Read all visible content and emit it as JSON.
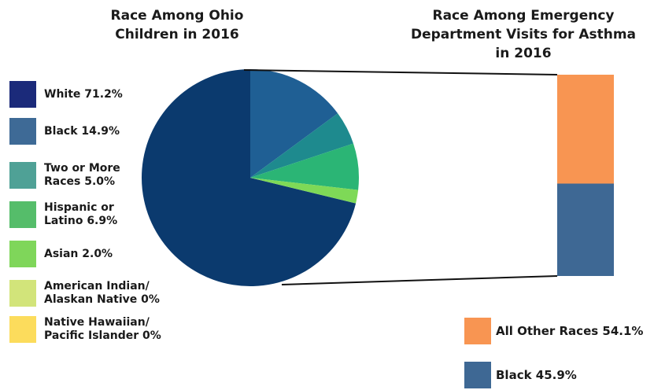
{
  "chart_data": [
    {
      "type": "pie",
      "title": "Race Among Ohio\nChildren in 2016",
      "slices": [
        {
          "label": "White 71.2%",
          "value": 71.2,
          "color": "#0b3a6e"
        },
        {
          "label": "Black 14.9%",
          "value": 14.9,
          "color": "#1f5f94"
        },
        {
          "label": "Two or More\nRaces 5.0%",
          "value": 5.0,
          "color": "#1e8a8e"
        },
        {
          "label": "Hispanic  or\nLatino 6.9%",
          "value": 6.9,
          "color": "#2bb575"
        },
        {
          "label": "Asian 2.0%",
          "value": 2.0,
          "color": "#7ed957"
        },
        {
          "label": "American Indian/\nAlaskan Native 0%",
          "value": 0,
          "color": "#d6e86a"
        },
        {
          "label": "Native Hawaiian/\nPacific Islander 0%",
          "value": 0,
          "color": "#fde25a"
        }
      ],
      "legend_colors": [
        "#1b2a7a",
        "#3e6a96",
        "#4fa196",
        "#55bd6a",
        "#7fd65a",
        "#d2e47a",
        "#fcdc5c"
      ]
    },
    {
      "type": "bar",
      "stacked": true,
      "title": "Race Among Emergency\nDepartment Visits for Asthma\nin 2016",
      "series": [
        {
          "name": "All Other Races 54.1%",
          "value": 54.1,
          "color": "#f89552"
        },
        {
          "name": "Black 45.9%",
          "value": 45.9,
          "color": "#3e6894"
        }
      ],
      "ylim": [
        0,
        100
      ]
    }
  ]
}
